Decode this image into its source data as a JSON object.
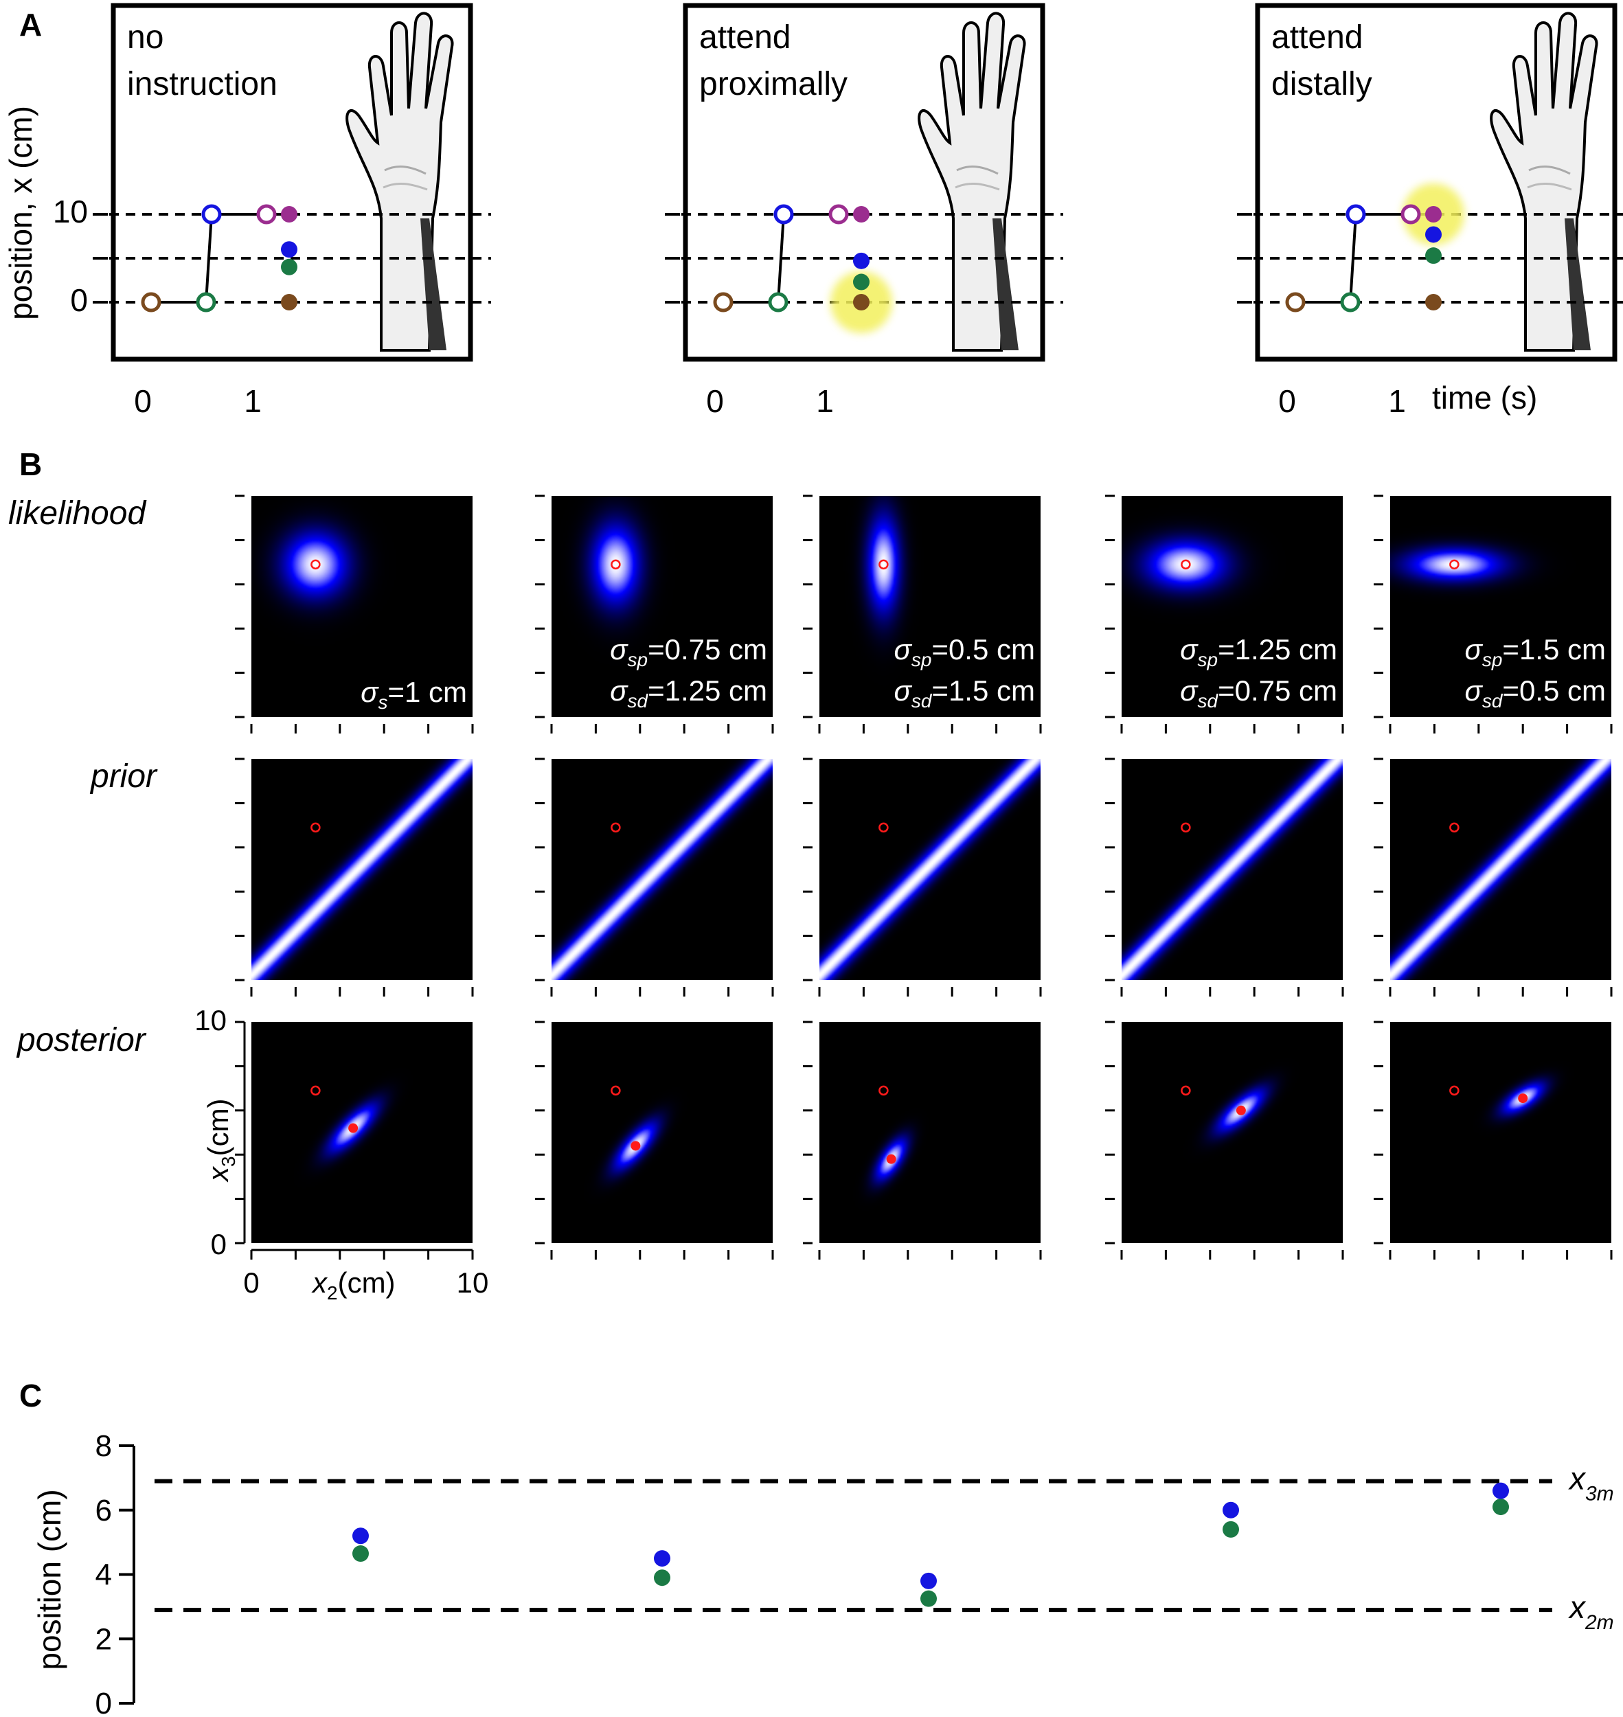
{
  "panel_a": {
    "label": "A",
    "ylabel": "position, x (cm)",
    "y_ticks": [
      "10",
      "0"
    ],
    "x_ticks": [
      "0",
      "1"
    ],
    "xlabel": "time (s)",
    "subpanels": [
      {
        "title_line1": "no",
        "title_line2": "instruction",
        "attended_site": "none"
      },
      {
        "title_line1": "attend",
        "title_line2": "proximally",
        "attended_site": "proximal (x = 0)"
      },
      {
        "title_line1": "attend",
        "title_line2": "distally",
        "attended_site": "distal (x = 10)"
      }
    ],
    "stimulus_points": [
      {
        "t": 0,
        "x": 0,
        "color": "#7a4a1e"
      },
      {
        "t": 0.5,
        "x": 0,
        "color": "#1b7a45"
      },
      {
        "t": 0.55,
        "x": 10,
        "color": "#1515e0"
      },
      {
        "t": 1.05,
        "x": 10,
        "color": "#9b2d8f"
      }
    ],
    "perceived_positions": [
      {
        "brown": 0,
        "green": 4,
        "blue": 6,
        "purple": 10
      },
      {
        "brown": 0,
        "green": 2.3,
        "blue": 4.7,
        "purple": 10
      },
      {
        "brown": 0,
        "green": 5.3,
        "blue": 7.7,
        "purple": 10
      }
    ],
    "highlight_color": "#f3f05c"
  },
  "panel_b": {
    "label": "B",
    "row_labels": [
      "likelihood",
      "prior",
      "posterior"
    ],
    "columns": [
      {
        "sigma_lines": [
          {
            "sym": "σ",
            "sub": "s",
            "rest": "=1 cm"
          }
        ],
        "sp": 1,
        "sd": 1,
        "post": [
          4.45,
          5.4
        ]
      },
      {
        "sigma_lines": [
          {
            "sym": "σ",
            "sub": "sp",
            "rest": "=0.75 cm"
          },
          {
            "sym": "σ",
            "sub": "sd",
            "rest": "=1.25 cm"
          }
        ],
        "sp": 0.75,
        "sd": 1.25,
        "post": [
          4.05,
          4.5
        ]
      },
      {
        "sigma_lines": [
          {
            "sym": "σ",
            "sub": "sp",
            "rest": "=0.5 cm"
          },
          {
            "sym": "σ",
            "sub": "sd",
            "rest": "=1.5 cm"
          }
        ],
        "sp": 0.5,
        "sd": 1.5,
        "post": [
          3.3,
          3.9
        ]
      },
      {
        "sigma_lines": [
          {
            "sym": "σ",
            "sub": "sp",
            "rest": "=1.25 cm"
          },
          {
            "sym": "σ",
            "sub": "sd",
            "rest": "=0.75 cm"
          }
        ],
        "sp": 1.25,
        "sd": 0.75,
        "post": [
          5.5,
          6.05
        ]
      },
      {
        "sigma_lines": [
          {
            "sym": "σ",
            "sub": "sp",
            "rest": "=1.5 cm"
          },
          {
            "sym": "σ",
            "sub": "sd",
            "rest": "=0.5 cm"
          }
        ],
        "sp": 1.5,
        "sd": 0.5,
        "post": [
          6.15,
          6.7
        ]
      }
    ],
    "measured_point": {
      "x2": 2.9,
      "x3": 6.9
    },
    "posterior_axes": {
      "x_ticks": [
        "0",
        "10"
      ],
      "y_ticks": [
        "10",
        "0"
      ],
      "xlabel": {
        "sym": "x",
        "sub": "2",
        "rest": "(cm)"
      },
      "ylabel": {
        "sym": "x",
        "sub": "3",
        "rest": "(cm)"
      }
    }
  },
  "chart_data": {
    "type": "scatter",
    "ylabel": "position (cm)",
    "ylim": [
      0,
      8
    ],
    "y_ticks": [
      "8",
      "6",
      "4",
      "2",
      "0"
    ],
    "categories": [
      "σs=1 cm",
      "σsp=0.75 cm, σsd=1.25 cm",
      "σsp=0.5 cm, σsd=1.5 cm",
      "σsp=1.25 cm, σsd=0.75 cm",
      "σsp=1.5 cm, σsd=0.5 cm"
    ],
    "series": [
      {
        "values": [
          5.2,
          4.5,
          3.8,
          6.0,
          6.6
        ],
        "color": "#1515e0"
      },
      {
        "values": [
          4.65,
          3.9,
          3.25,
          5.4,
          6.1
        ],
        "color": "#1b7a45"
      }
    ],
    "reference_lines": [
      {
        "value": 6.9,
        "sym": "x",
        "sub": "3m"
      },
      {
        "value": 2.9,
        "sym": "x",
        "sub": "2m"
      }
    ]
  },
  "panel_c": {
    "label": "C"
  }
}
